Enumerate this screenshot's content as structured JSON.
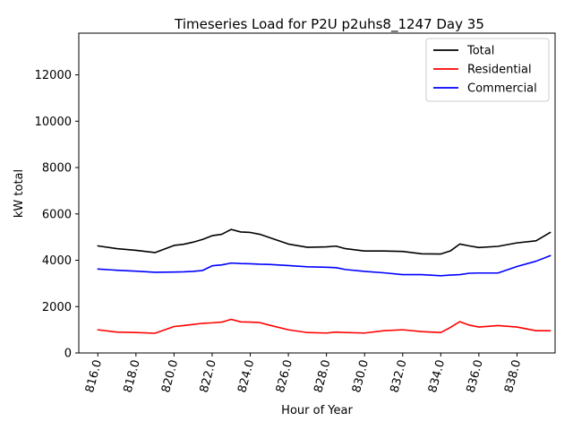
{
  "chart_data": {
    "type": "line",
    "title": "Timeseries Load for P2U p2uhs8_1247  Day 35",
    "xlabel": "Hour of Year",
    "ylabel": "kW total",
    "xlim": [
      815.0,
      840.0
    ],
    "ylim": [
      0,
      13800
    ],
    "x_ticks": [
      816.0,
      818.0,
      820.0,
      822.0,
      824.0,
      826.0,
      828.0,
      830.0,
      832.0,
      834.0,
      836.0,
      838.0
    ],
    "x_tick_labels": [
      "816.0",
      "818.0",
      "820.0",
      "822.0",
      "824.0",
      "826.0",
      "828.0",
      "830.0",
      "832.0",
      "834.0",
      "836.0",
      "838.0"
    ],
    "y_ticks": [
      0,
      2000,
      4000,
      6000,
      8000,
      10000,
      12000
    ],
    "y_tick_labels": [
      "0",
      "2000",
      "4000",
      "6000",
      "8000",
      "10000",
      "12000"
    ],
    "legend_position": "top-right",
    "x": [
      816,
      817,
      818,
      819,
      820,
      820.5,
      821,
      821.5,
      822,
      822.5,
      823,
      823.5,
      824,
      824.5,
      825,
      826,
      827,
      828,
      828.5,
      829,
      830,
      831,
      832,
      833,
      834,
      834.5,
      835,
      835.5,
      836,
      837,
      838,
      839,
      839.75
    ],
    "series": [
      {
        "name": "Total",
        "color": "#000000",
        "values": [
          4620,
          4500,
          4430,
          4330,
          4640,
          4690,
          4780,
          4900,
          5060,
          5120,
          5330,
          5220,
          5200,
          5120,
          4980,
          4700,
          4560,
          4580,
          4610,
          4500,
          4400,
          4400,
          4380,
          4280,
          4270,
          4400,
          4700,
          4620,
          4550,
          4600,
          4750,
          4840,
          5200
        ]
      },
      {
        "name": "Residential",
        "color": "#ff0000",
        "values": [
          1000,
          900,
          880,
          850,
          1140,
          1180,
          1230,
          1280,
          1300,
          1330,
          1450,
          1340,
          1330,
          1310,
          1200,
          1000,
          880,
          860,
          900,
          880,
          860,
          960,
          1000,
          920,
          880,
          1100,
          1350,
          1200,
          1120,
          1180,
          1120,
          960,
          960
        ]
      },
      {
        "name": "Commercial",
        "color": "#0000ff",
        "values": [
          3620,
          3570,
          3530,
          3480,
          3490,
          3500,
          3520,
          3560,
          3760,
          3800,
          3880,
          3860,
          3850,
          3830,
          3820,
          3770,
          3720,
          3700,
          3680,
          3600,
          3520,
          3460,
          3380,
          3380,
          3330,
          3360,
          3380,
          3440,
          3450,
          3450,
          3730,
          3960,
          4200
        ]
      }
    ]
  }
}
